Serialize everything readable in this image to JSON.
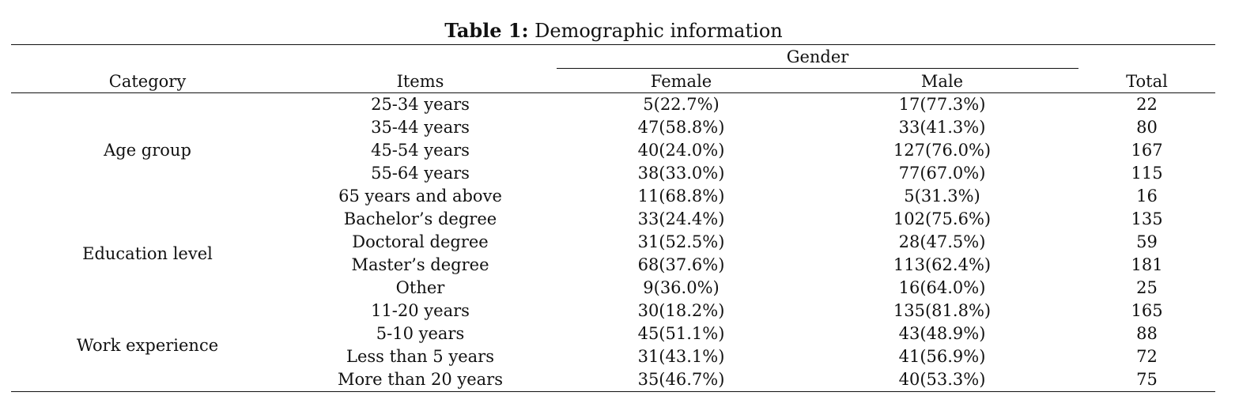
{
  "caption": {
    "label": "Table 1:",
    "title": "Demographic information"
  },
  "headers": {
    "category": "Category",
    "items": "Items",
    "gender": "Gender",
    "female": "Female",
    "male": "Male",
    "total": "Total"
  },
  "groups": [
    {
      "category": "Age group",
      "rows": [
        {
          "item": "25-34 years",
          "female": "5(22.7%)",
          "male": "17(77.3%)",
          "total": "22"
        },
        {
          "item": "35-44 years",
          "female": "47(58.8%)",
          "male": "33(41.3%)",
          "total": "80"
        },
        {
          "item": "45-54 years",
          "female": "40(24.0%)",
          "male": "127(76.0%)",
          "total": "167"
        },
        {
          "item": "55-64 years",
          "female": "38(33.0%)",
          "male": "77(67.0%)",
          "total": "115"
        },
        {
          "item": "65 years and above",
          "female": "11(68.8%)",
          "male": "5(31.3%)",
          "total": "16"
        }
      ]
    },
    {
      "category": "Education level",
      "rows": [
        {
          "item": "Bachelor’s degree",
          "female": "33(24.4%)",
          "male": "102(75.6%)",
          "total": "135"
        },
        {
          "item": "Doctoral degree",
          "female": "31(52.5%)",
          "male": "28(47.5%)",
          "total": "59"
        },
        {
          "item": "Master’s degree",
          "female": "68(37.6%)",
          "male": "113(62.4%)",
          "total": "181"
        },
        {
          "item": "Other",
          "female": "9(36.0%)",
          "male": "16(64.0%)",
          "total": "25"
        }
      ]
    },
    {
      "category": "Work experience",
      "rows": [
        {
          "item": "11-20 years",
          "female": "30(18.2%)",
          "male": "135(81.8%)",
          "total": "165"
        },
        {
          "item": "5-10 years",
          "female": "45(51.1%)",
          "male": "43(48.9%)",
          "total": "88"
        },
        {
          "item": "Less than 5 years",
          "female": "31(43.1%)",
          "male": "41(56.9%)",
          "total": "72"
        },
        {
          "item": "More than 20 years",
          "female": "35(46.7%)",
          "male": "40(53.3%)",
          "total": "75"
        }
      ]
    }
  ]
}
